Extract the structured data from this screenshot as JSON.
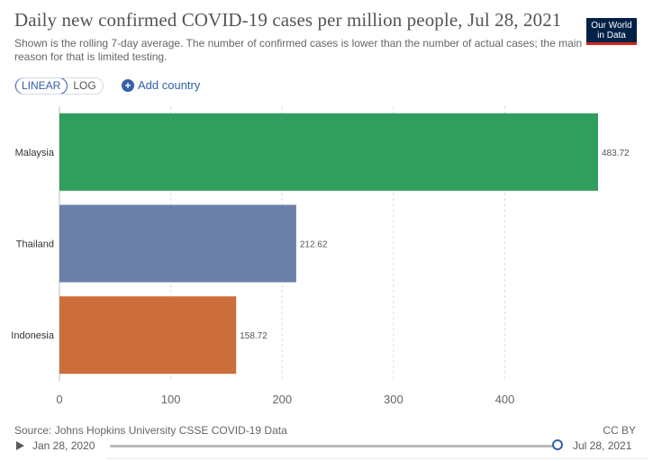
{
  "header": {
    "title": "Daily new confirmed COVID-19 cases per million people, Jul 28, 2021",
    "subtitle": "Shown is the rolling 7-day average. The number of confirmed cases is lower than the number of actual cases; the main reason for that is limited testing.",
    "logo_line1": "Our World",
    "logo_line2": "in Data"
  },
  "controls": {
    "linear_label": "LINEAR",
    "log_label": "LOG",
    "add_country_label": "Add country",
    "active_scale": "LINEAR"
  },
  "footer": {
    "source": "Source: Johns Hopkins University CSSE COVID-19 Data",
    "license": "CC BY",
    "start_date": "Jan 28, 2020",
    "end_date": "Jul 28, 2021"
  },
  "timeline": {
    "position": 1.0
  },
  "chart_data": {
    "type": "bar",
    "orientation": "horizontal",
    "categories": [
      "Malaysia",
      "Thailand",
      "Indonesia"
    ],
    "values": [
      483.72,
      212.62,
      158.72
    ],
    "value_labels": [
      "483.72",
      "212.62",
      "158.72"
    ],
    "colors": [
      "#2f9e5f",
      "#6b80a8",
      "#cc6e3a"
    ],
    "xticks": [
      0,
      100,
      200,
      300,
      400
    ],
    "xlim": [
      0,
      483.72
    ],
    "grid": true,
    "scale": "linear"
  }
}
